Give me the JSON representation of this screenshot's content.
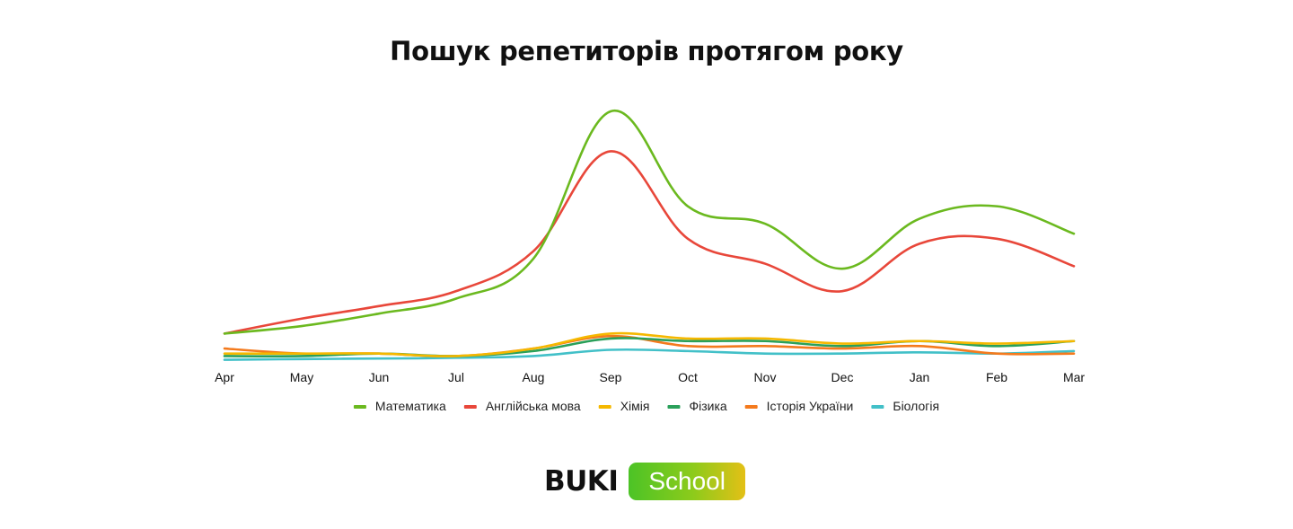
{
  "page": {
    "title": "Пошук репетиторів протягом року"
  },
  "chart_data": {
    "type": "line",
    "title": "Пошук репетиторів протягом року",
    "xlabel": "",
    "ylabel": "",
    "categories": [
      "Apr",
      "May",
      "Jun",
      "Jul",
      "Aug",
      "Sep",
      "Oct",
      "Nov",
      "Dec",
      "Jan",
      "Feb",
      "Mar"
    ],
    "ylim": [
      0,
      100
    ],
    "grid": false,
    "y_axis_visible": false,
    "legend_position": "bottom",
    "series": [
      {
        "name": "Математика",
        "color": "#6bb91f",
        "values": [
          11,
          14,
          19,
          25,
          41,
          100,
          62,
          55,
          37,
          57,
          62,
          51
        ]
      },
      {
        "name": "Англійська мова",
        "color": "#e8473a",
        "values": [
          11,
          17,
          22,
          28,
          44,
          84,
          49,
          39,
          28,
          47,
          49,
          38
        ]
      },
      {
        "name": "Хімія",
        "color": "#f5b800",
        "values": [
          3,
          3,
          3,
          2,
          5,
          11,
          9,
          9,
          7,
          8,
          7,
          8
        ]
      },
      {
        "name": "Фізика",
        "color": "#2aa05a",
        "values": [
          2,
          2,
          3,
          2,
          4,
          9,
          8,
          8,
          6,
          8,
          6,
          8
        ]
      },
      {
        "name": "Історія України",
        "color": "#f47a1d",
        "values": [
          5,
          3,
          3,
          2,
          5,
          10,
          6,
          6,
          5,
          6,
          3,
          3
        ]
      },
      {
        "name": "Біологія",
        "color": "#42c0c8",
        "values": [
          0.5,
          0.8,
          1,
          1.3,
          2,
          4.5,
          4,
          3,
          3,
          3.5,
          3,
          4
        ]
      }
    ]
  },
  "logo": {
    "word": "BUKI",
    "badge": "School",
    "badge_colors": [
      "#4cc326",
      "#e3c016"
    ]
  }
}
